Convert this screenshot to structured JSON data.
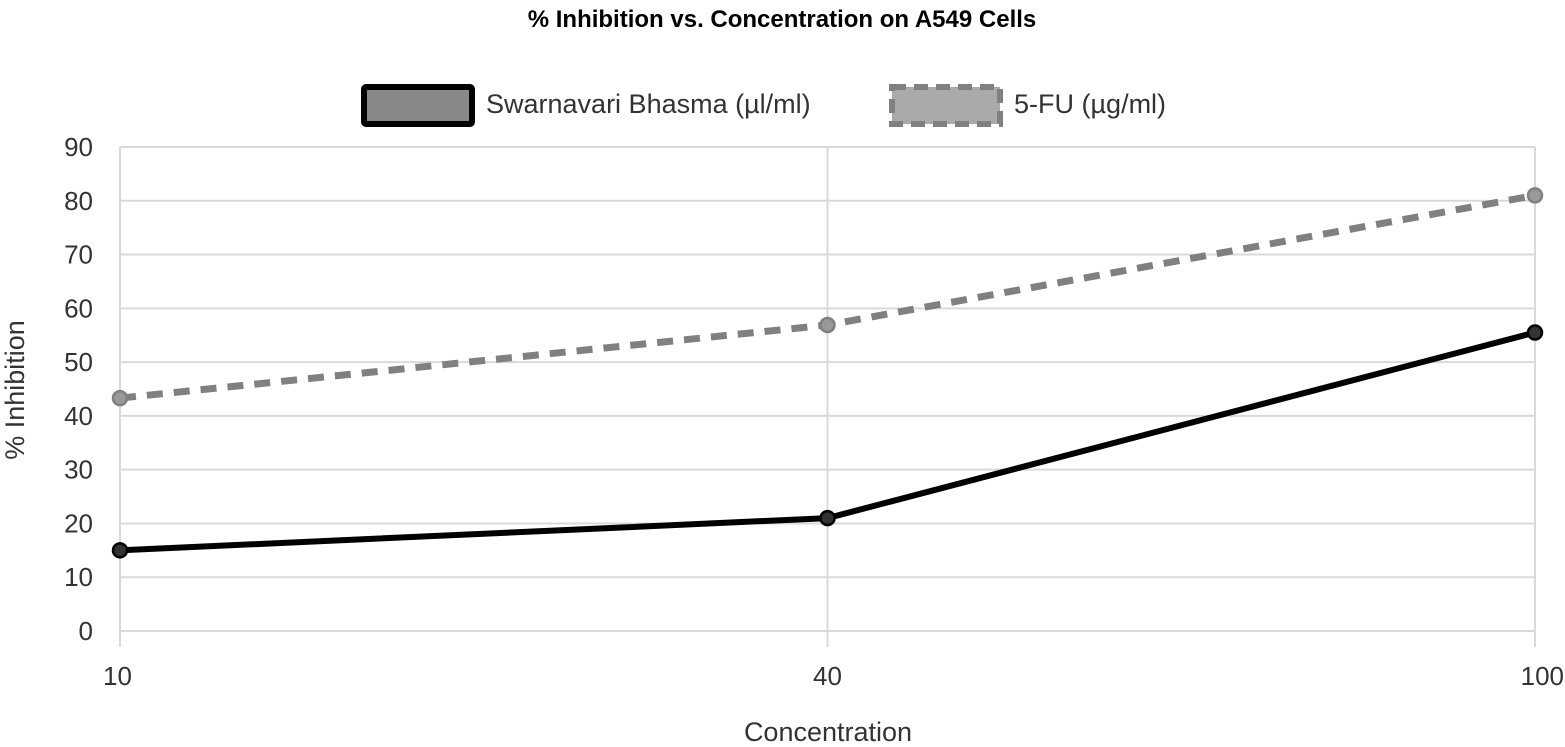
{
  "chart_data": {
    "type": "line",
    "title": "% Inhibition vs. Concentration on A549 Cells",
    "xlabel": "Concentration",
    "ylabel": "% Inhibition",
    "categories": [
      "10",
      "40",
      "100"
    ],
    "ylim": [
      0,
      90
    ],
    "yticks": [
      0,
      10,
      20,
      30,
      40,
      50,
      60,
      70,
      80,
      90
    ],
    "grid": true,
    "legend_position": "top",
    "series": [
      {
        "name": "Swarnavari Bhasma (µl/ml)",
        "values": [
          15,
          21,
          55.5
        ],
        "color": "#000000",
        "fill": "#888888",
        "style": "solid"
      },
      {
        "name": "5-FU (µg/ml)",
        "values": [
          43.3,
          56.9,
          81
        ],
        "color": "#808080",
        "fill": "#aaaaaa",
        "style": "dashed"
      }
    ]
  }
}
